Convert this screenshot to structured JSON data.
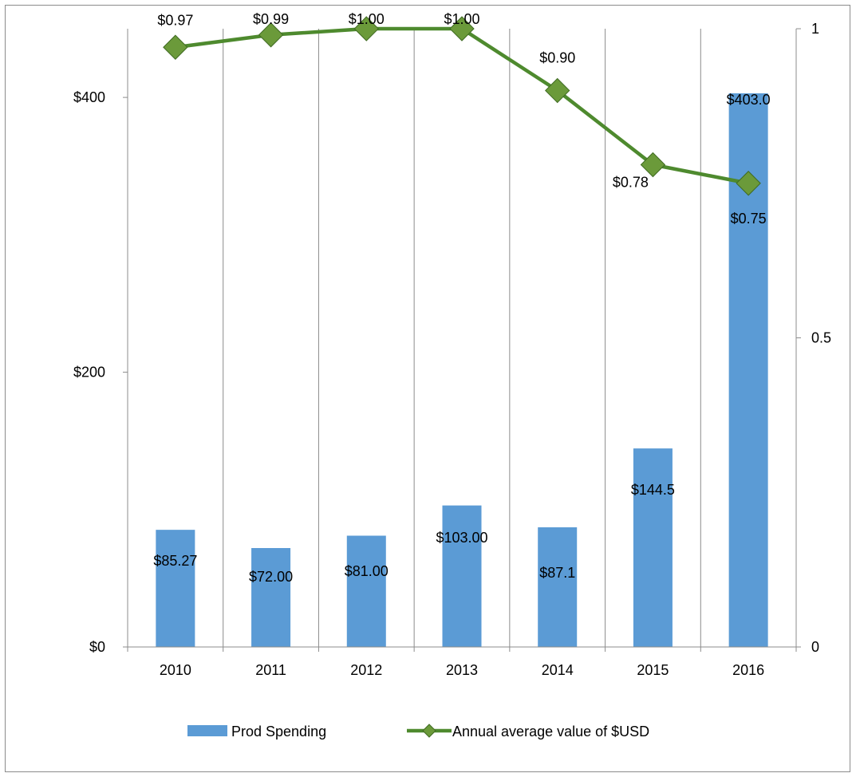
{
  "chart_data": {
    "type": "bar",
    "categories": [
      "2010",
      "2011",
      "2012",
      "2013",
      "2014",
      "2015",
      "2016"
    ],
    "series": [
      {
        "name": "Prod Spending",
        "type": "bar",
        "axis": "left",
        "values": [
          85.27,
          72.0,
          81.0,
          103.0,
          87.1,
          144.5,
          403.0
        ],
        "labels": [
          "$85.27",
          "$72.00",
          "$81.00",
          "$103.00",
          "$87.1",
          "$144.5",
          "$403.0"
        ],
        "color": "#5b9bd5"
      },
      {
        "name": "Annual average value of $USD",
        "type": "line",
        "axis": "right",
        "values": [
          0.97,
          0.99,
          1.0,
          1.0,
          0.9,
          0.78,
          0.75
        ],
        "labels": [
          "$0.97",
          "$0.99",
          "$1.00",
          "$1.00",
          "$0.90",
          "$0.78",
          "$0.75"
        ],
        "color": "#4e8a2e",
        "marker": "diamond",
        "marker_color": "#6b9a3a"
      }
    ],
    "y_left": {
      "ylim": [
        0,
        450
      ],
      "ticks": [
        0,
        200,
        400
      ],
      "tick_labels": [
        "$0",
        "$200",
        "$400"
      ]
    },
    "y_right": {
      "ylim": [
        0,
        1
      ],
      "ticks": [
        0,
        0.5,
        1
      ],
      "tick_labels": [
        "0",
        "0.5",
        "1"
      ]
    },
    "grid": "vertical",
    "legend": "bottom",
    "title": "",
    "xlabel": "",
    "ylabel": ""
  }
}
